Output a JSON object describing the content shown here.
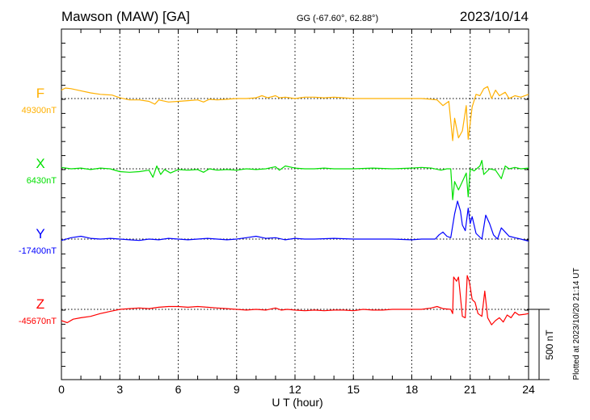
{
  "chart_data": {
    "type": "line",
    "title": "Mawson (MAW)  [GA]",
    "coords": "GG (-67.60°,  62.88°)",
    "date": "2023/10/14",
    "xlabel": "U T (hour)",
    "xlim": [
      0,
      24
    ],
    "x_ticks": [
      "0",
      "3",
      "6",
      "9",
      "12",
      "15",
      "18",
      "21",
      "24"
    ],
    "x_tick_values": [
      0,
      3,
      6,
      9,
      12,
      15,
      18,
      21,
      24
    ],
    "grid": "dotted vertical every 3 h",
    "scale_bar": "500 nT",
    "nT_per_minor_tick": 100,
    "footer": "Plotted at 2023/10/20 21:14 UT",
    "series": [
      {
        "name": "F",
        "baseline_label": "49300nT",
        "color": "#ffb000",
        "points": [
          [
            0,
            60
          ],
          [
            0.2,
            75
          ],
          [
            0.5,
            70
          ],
          [
            1,
            55
          ],
          [
            1.5,
            40
          ],
          [
            2,
            30
          ],
          [
            2.6,
            25
          ],
          [
            3,
            5
          ],
          [
            3.5,
            -10
          ],
          [
            4,
            -10
          ],
          [
            4.5,
            -20
          ],
          [
            4.8,
            -40
          ],
          [
            5,
            -10
          ],
          [
            5.5,
            -25
          ],
          [
            6,
            -20
          ],
          [
            6.5,
            -15
          ],
          [
            7,
            -10
          ],
          [
            7.3,
            -25
          ],
          [
            7.6,
            -5
          ],
          [
            8,
            -10
          ],
          [
            8.5,
            -5
          ],
          [
            9,
            0
          ],
          [
            9.5,
            0
          ],
          [
            10,
            5
          ],
          [
            10.3,
            20
          ],
          [
            10.6,
            5
          ],
          [
            11,
            20
          ],
          [
            11.2,
            5
          ],
          [
            11.5,
            10
          ],
          [
            12,
            0
          ],
          [
            12.5,
            10
          ],
          [
            13,
            10
          ],
          [
            13.5,
            5
          ],
          [
            14,
            10
          ],
          [
            14.5,
            5
          ],
          [
            15,
            0
          ],
          [
            15.5,
            0
          ],
          [
            16,
            0
          ],
          [
            17,
            0
          ],
          [
            18,
            0
          ],
          [
            18.5,
            0
          ],
          [
            19,
            -5
          ],
          [
            19.3,
            -10
          ],
          [
            19.6,
            -50
          ],
          [
            19.9,
            -20
          ],
          [
            20.1,
            -300
          ],
          [
            20.2,
            -140
          ],
          [
            20.4,
            -280
          ],
          [
            20.6,
            -230
          ],
          [
            20.8,
            -50
          ],
          [
            20.9,
            -290
          ],
          [
            21.1,
            -60
          ],
          [
            21.3,
            30
          ],
          [
            21.5,
            20
          ],
          [
            21.7,
            70
          ],
          [
            21.9,
            85
          ],
          [
            22.1,
            0
          ],
          [
            22.3,
            60
          ],
          [
            22.5,
            20
          ],
          [
            22.8,
            45
          ],
          [
            23,
            0
          ],
          [
            23.3,
            20
          ],
          [
            23.6,
            10
          ],
          [
            24,
            30
          ]
        ]
      },
      {
        "name": "X",
        "baseline_label": "6430nT",
        "color": "#00e000",
        "points": [
          [
            0,
            10
          ],
          [
            0.5,
            0
          ],
          [
            1,
            5
          ],
          [
            1.5,
            -5
          ],
          [
            2,
            5
          ],
          [
            2.5,
            0
          ],
          [
            3,
            -20
          ],
          [
            3.5,
            -25
          ],
          [
            4,
            -20
          ],
          [
            4.5,
            -10
          ],
          [
            4.7,
            -60
          ],
          [
            4.9,
            20
          ],
          [
            5.1,
            -40
          ],
          [
            5.3,
            -5
          ],
          [
            5.6,
            -30
          ],
          [
            6,
            -5
          ],
          [
            6.5,
            -10
          ],
          [
            7,
            -5
          ],
          [
            7.3,
            -25
          ],
          [
            7.6,
            0
          ],
          [
            8,
            -10
          ],
          [
            8.5,
            -5
          ],
          [
            9,
            -10
          ],
          [
            9.5,
            0
          ],
          [
            10,
            -5
          ],
          [
            10.5,
            0
          ],
          [
            11,
            15
          ],
          [
            11.2,
            -10
          ],
          [
            11.5,
            20
          ],
          [
            12,
            5
          ],
          [
            12.5,
            0
          ],
          [
            13,
            0
          ],
          [
            13.5,
            5
          ],
          [
            14,
            0
          ],
          [
            15,
            0
          ],
          [
            16,
            5
          ],
          [
            17,
            0
          ],
          [
            18,
            5
          ],
          [
            18.5,
            10
          ],
          [
            19,
            5
          ],
          [
            19.5,
            -10
          ],
          [
            19.8,
            0
          ],
          [
            20.0,
            0
          ],
          [
            20.1,
            -220
          ],
          [
            20.2,
            -90
          ],
          [
            20.4,
            -150
          ],
          [
            20.6,
            -90
          ],
          [
            20.8,
            -30
          ],
          [
            20.9,
            -200
          ],
          [
            21.0,
            0
          ],
          [
            21.2,
            -15
          ],
          [
            21.5,
            20
          ],
          [
            21.6,
            60
          ],
          [
            21.7,
            -40
          ],
          [
            22,
            0
          ],
          [
            22.3,
            -10
          ],
          [
            22.6,
            -70
          ],
          [
            22.8,
            20
          ],
          [
            23,
            0
          ],
          [
            23.3,
            10
          ],
          [
            23.6,
            0
          ],
          [
            24,
            5
          ]
        ]
      },
      {
        "name": "Y",
        "baseline_label": "-17400nT",
        "color": "#0000ff",
        "points": [
          [
            0,
            -10
          ],
          [
            0.5,
            10
          ],
          [
            1,
            20
          ],
          [
            1.5,
            5
          ],
          [
            2,
            0
          ],
          [
            2.5,
            5
          ],
          [
            3,
            0
          ],
          [
            3.5,
            -5
          ],
          [
            4,
            -10
          ],
          [
            4.5,
            0
          ],
          [
            5,
            -5
          ],
          [
            5.5,
            5
          ],
          [
            6,
            0
          ],
          [
            6.5,
            -5
          ],
          [
            7,
            0
          ],
          [
            7.5,
            5
          ],
          [
            8,
            0
          ],
          [
            8.5,
            -5
          ],
          [
            9,
            0
          ],
          [
            9.5,
            10
          ],
          [
            10,
            20
          ],
          [
            10.5,
            5
          ],
          [
            11,
            10
          ],
          [
            11.5,
            -5
          ],
          [
            12,
            5
          ],
          [
            12.5,
            0
          ],
          [
            13,
            0
          ],
          [
            14,
            5
          ],
          [
            15,
            0
          ],
          [
            16,
            0
          ],
          [
            17,
            0
          ],
          [
            18,
            -5
          ],
          [
            18.5,
            0
          ],
          [
            19,
            0
          ],
          [
            19.2,
            0
          ],
          [
            19.4,
            30
          ],
          [
            19.6,
            50
          ],
          [
            19.8,
            20
          ],
          [
            20.0,
            10
          ],
          [
            20.2,
            180
          ],
          [
            20.35,
            270
          ],
          [
            20.5,
            200
          ],
          [
            20.6,
            100
          ],
          [
            20.75,
            60
          ],
          [
            20.9,
            220
          ],
          [
            21.0,
            110
          ],
          [
            21.1,
            160
          ],
          [
            21.3,
            40
          ],
          [
            21.6,
            0
          ],
          [
            21.8,
            170
          ],
          [
            22.0,
            110
          ],
          [
            22.2,
            30
          ],
          [
            22.4,
            0
          ],
          [
            22.6,
            80
          ],
          [
            22.8,
            50
          ],
          [
            23.0,
            20
          ],
          [
            23.3,
            10
          ],
          [
            23.6,
            0
          ],
          [
            24,
            -15
          ]
        ]
      },
      {
        "name": "Z",
        "baseline_label": "-45670nT",
        "color": "#ff0000",
        "points": [
          [
            0,
            -80
          ],
          [
            0.3,
            -95
          ],
          [
            0.6,
            -70
          ],
          [
            1,
            -60
          ],
          [
            1.5,
            -50
          ],
          [
            2,
            -30
          ],
          [
            2.5,
            -15
          ],
          [
            3,
            0
          ],
          [
            3.5,
            5
          ],
          [
            4,
            10
          ],
          [
            4.5,
            5
          ],
          [
            5,
            15
          ],
          [
            5.5,
            20
          ],
          [
            6,
            20
          ],
          [
            6.5,
            15
          ],
          [
            7,
            20
          ],
          [
            7.5,
            15
          ],
          [
            8,
            10
          ],
          [
            8.5,
            5
          ],
          [
            9,
            0
          ],
          [
            9.5,
            -5
          ],
          [
            10,
            0
          ],
          [
            10.5,
            -5
          ],
          [
            11,
            10
          ],
          [
            11.3,
            -5
          ],
          [
            11.6,
            0
          ],
          [
            12,
            -5
          ],
          [
            12.5,
            -10
          ],
          [
            13,
            -5
          ],
          [
            13.5,
            -10
          ],
          [
            14,
            -5
          ],
          [
            14.5,
            -5
          ],
          [
            15,
            -10
          ],
          [
            15.5,
            0
          ],
          [
            16,
            -5
          ],
          [
            16.5,
            -5
          ],
          [
            17,
            0
          ],
          [
            17.5,
            0
          ],
          [
            18,
            0
          ],
          [
            18.5,
            0
          ],
          [
            19,
            10
          ],
          [
            19.3,
            20
          ],
          [
            19.6,
            5
          ],
          [
            20.0,
            0
          ],
          [
            20.1,
            -30
          ],
          [
            20.15,
            230
          ],
          [
            20.3,
            200
          ],
          [
            20.4,
            230
          ],
          [
            20.6,
            -50
          ],
          [
            20.75,
            -60
          ],
          [
            20.85,
            240
          ],
          [
            20.95,
            200
          ],
          [
            21.0,
            160
          ],
          [
            21.1,
            70
          ],
          [
            21.25,
            50
          ],
          [
            21.4,
            -30
          ],
          [
            21.6,
            -50
          ],
          [
            21.75,
            130
          ],
          [
            21.9,
            -60
          ],
          [
            22.1,
            -110
          ],
          [
            22.3,
            -80
          ],
          [
            22.5,
            -60
          ],
          [
            22.7,
            -90
          ],
          [
            22.9,
            -40
          ],
          [
            23.1,
            -60
          ],
          [
            23.3,
            -20
          ],
          [
            23.5,
            -40
          ],
          [
            23.8,
            -35
          ],
          [
            24,
            -30
          ]
        ]
      }
    ]
  }
}
